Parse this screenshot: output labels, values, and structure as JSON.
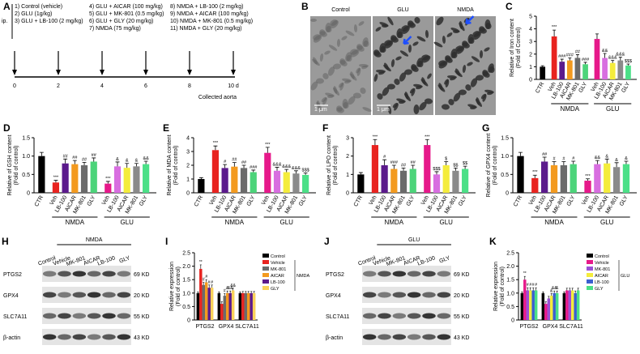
{
  "timeline": {
    "panel": "A",
    "route": "ip.",
    "treatments": [
      "1) Control (vehicle)",
      "2) GLU (1g/kg)",
      "3) GLU + LB-100 (2 mg/kg)",
      "4) GLU + AICAR (100 mg/kg)",
      "5) GLU + MK-801 (0.5 mg/kg)",
      "6) GLU + GLY (20 mg/kg)",
      "7) NMDA (75 mg/kg)",
      "8) NMDA + LB-100 (2 mg/kg)",
      "9) NMDA + AICAR (100 mg/kg)",
      "10) NMDA + MK-801 (0.5 mg/kg)",
      "11) NMDA + GLY (20 mg/kg)"
    ],
    "days": [
      "0",
      "2",
      "4",
      "6",
      "8",
      "10 d"
    ],
    "end_label": "Collected aorta"
  },
  "micrographs": {
    "panel": "B",
    "labels": [
      "Control",
      "GLU",
      "NMDA"
    ],
    "scale_label": "1 μm"
  },
  "blots": [
    {
      "panel": "H",
      "group": "NMDA",
      "lanes": [
        "Control",
        "Vehicle",
        "MK-801",
        "AICAR",
        "LB-100",
        "GLY"
      ],
      "rows": [
        {
          "protein": "PTGS2",
          "size": "69 KD"
        },
        {
          "protein": "GPX4",
          "size": "20 KD"
        },
        {
          "protein": "SLC7A11",
          "size": "55 KD"
        },
        {
          "protein": "β-actin",
          "size": "43 KD"
        }
      ]
    },
    {
      "panel": "J",
      "group": "GLU",
      "lanes": [
        "Control",
        "Vehicle",
        "MK-801",
        "AICAR",
        "LB-100",
        "GLY"
      ],
      "rows": [
        {
          "protein": "PTGS2",
          "size": "69 KD"
        },
        {
          "protein": "GPX4",
          "size": "20 KD"
        },
        {
          "protein": "SLC7A11",
          "size": "55 KD"
        },
        {
          "protein": "β-actin",
          "size": "43 KD"
        }
      ]
    }
  ],
  "chart_data": [
    {
      "type": "bar",
      "panel": "C",
      "ylabel": [
        "Relative of Iron content",
        "(Fold of Control)"
      ],
      "categories": [
        "CTR",
        "Veh",
        "LB-100",
        "AICAR",
        "MK-801",
        "GLY",
        "Veh",
        "LB-100",
        "AICAR",
        "MK-801",
        "GLY"
      ],
      "group_labels": [
        "NMDA",
        "GLU"
      ],
      "values": [
        1.0,
        3.4,
        1.4,
        1.5,
        1.7,
        1.2,
        3.2,
        1.7,
        1.3,
        1.5,
        1.1
      ],
      "errors": [
        0.08,
        0.5,
        0.2,
        0.2,
        0.25,
        0.15,
        0.4,
        0.35,
        0.2,
        0.25,
        0.12
      ],
      "annotations": [
        null,
        "***",
        "###",
        "###",
        "##",
        "###",
        null,
        "&&",
        "&&&",
        "&&&",
        "$$$"
      ],
      "colors": [
        "#000000",
        "#e8231f",
        "#5b1a8c",
        "#f39a1f",
        "#6b6b6b",
        "#4cd47a",
        "#e6198a",
        "#d86ee0",
        "#f4ec3c",
        "#8a8a8a",
        "#4be087"
      ],
      "ylim": [
        0,
        5
      ],
      "yticks": [
        0,
        1,
        2,
        3,
        4,
        5
      ]
    },
    {
      "type": "bar",
      "panel": "D",
      "ylabel": [
        "Relative of GSH content",
        "(Fold of control)"
      ],
      "categories": [
        "CTR",
        "Veh",
        "LB-100",
        "AICAR",
        "MK-801",
        "GLY",
        "Veh",
        "LB-100",
        "AICAR",
        "MK-801",
        "GLY"
      ],
      "group_labels": [
        "NMDA",
        "GLU"
      ],
      "values": [
        1.0,
        0.28,
        0.8,
        0.78,
        0.75,
        0.85,
        0.25,
        0.72,
        0.68,
        0.72,
        0.78
      ],
      "errors": [
        0.1,
        0.06,
        0.12,
        0.1,
        0.08,
        0.1,
        0.06,
        0.12,
        0.12,
        0.08,
        0.08
      ],
      "annotations": [
        null,
        "***",
        "##",
        "##",
        "##",
        "##",
        "***",
        "&",
        "&",
        "&",
        "&&"
      ],
      "colors": [
        "#000000",
        "#e8231f",
        "#5b1a8c",
        "#f39a1f",
        "#6b6b6b",
        "#4cd47a",
        "#e6198a",
        "#d86ee0",
        "#f4ec3c",
        "#8a8a8a",
        "#4be087"
      ],
      "ylim": [
        0,
        1.5
      ],
      "yticks": [
        0,
        0.5,
        {
          "value": 1,
          "label": "1.0"
        },
        1.5
      ]
    },
    {
      "type": "bar",
      "panel": "E",
      "ylabel": [
        "Relative of MDA content",
        "(Fold of control)"
      ],
      "categories": [
        "CTR",
        "Veh",
        "LB-100",
        "AICAR",
        "MK-801",
        "GLY",
        "Veh",
        "LB-100",
        "AICAR",
        "MK-801",
        "GLY"
      ],
      "group_labels": [
        "NMDA",
        "GLU"
      ],
      "values": [
        1.0,
        3.1,
        1.8,
        1.9,
        1.8,
        1.5,
        2.9,
        1.6,
        1.5,
        1.4,
        1.3
      ],
      "errors": [
        0.1,
        0.3,
        0.25,
        0.3,
        0.2,
        0.15,
        0.4,
        0.25,
        0.2,
        0.2,
        0.15
      ],
      "annotations": [
        null,
        "***",
        "#",
        "##",
        "##",
        "###",
        "***",
        "&&&",
        "&&&",
        "&&&",
        "$$$"
      ],
      "colors": [
        "#000000",
        "#e8231f",
        "#5b1a8c",
        "#f39a1f",
        "#6b6b6b",
        "#4cd47a",
        "#e6198a",
        "#d86ee0",
        "#f4ec3c",
        "#8a8a8a",
        "#4be087"
      ],
      "ylim": [
        0,
        4
      ],
      "yticks": [
        0,
        1,
        2,
        3,
        4
      ]
    },
    {
      "type": "bar",
      "panel": "F",
      "ylabel": [
        "Relative of LPO content",
        "(Fold of control)"
      ],
      "categories": [
        "CTR",
        "Veh",
        "LB-100",
        "AICAR",
        "MK-801",
        "GLY",
        "Veh",
        "LB-100",
        "AICAR",
        "MK-801",
        "GLY"
      ],
      "group_labels": [
        "NMDA",
        "GLU"
      ],
      "values": [
        1.0,
        2.6,
        1.5,
        1.3,
        1.2,
        1.3,
        2.6,
        1.0,
        1.5,
        1.2,
        1.3
      ],
      "errors": [
        0.1,
        0.3,
        0.3,
        0.2,
        0.15,
        0.2,
        0.3,
        0.15,
        0.2,
        0.15,
        0.15
      ],
      "annotations": [
        null,
        "***",
        "#",
        "###",
        "##",
        "##",
        "***",
        "$$$",
        "$",
        "$$",
        "$$"
      ],
      "colors": [
        "#000000",
        "#e8231f",
        "#5b1a8c",
        "#f39a1f",
        "#6b6b6b",
        "#4cd47a",
        "#e6198a",
        "#d86ee0",
        "#f4ec3c",
        "#8a8a8a",
        "#4be087"
      ],
      "ylim": [
        0,
        3
      ],
      "yticks": [
        0,
        1,
        2,
        3
      ]
    },
    {
      "type": "bar",
      "panel": "G",
      "ylabel": [
        "Relative of GPX4 content",
        "(Fold of control)"
      ],
      "categories": [
        "CTR",
        "Veh",
        "LB-100",
        "AICAR",
        "MK-801",
        "GLY",
        "Veh",
        "LB-100",
        "AICAR",
        "MK-801",
        "GLY"
      ],
      "group_labels": [
        "NMDA",
        "GLU"
      ],
      "values": [
        1.0,
        0.4,
        0.85,
        0.75,
        0.75,
        0.78,
        0.33,
        0.78,
        0.8,
        0.7,
        0.78
      ],
      "errors": [
        0.1,
        0.08,
        0.12,
        0.1,
        0.1,
        0.08,
        0.05,
        0.1,
        0.12,
        0.12,
        0.08
      ],
      "annotations": [
        null,
        "***",
        "##",
        "#",
        "#",
        "#",
        "***",
        "&&",
        "&",
        "&",
        "&"
      ],
      "colors": [
        "#000000",
        "#e8231f",
        "#5b1a8c",
        "#f39a1f",
        "#6b6b6b",
        "#4cd47a",
        "#e6198a",
        "#d86ee0",
        "#f4ec3c",
        "#8a8a8a",
        "#4be087"
      ],
      "ylim": [
        0,
        1.5
      ],
      "yticks": [
        0,
        0.5,
        {
          "value": 1,
          "label": "1.0"
        },
        1.5
      ]
    },
    {
      "type": "grouped_bar",
      "panel": "I",
      "ylabel": [
        "Relative expression",
        "(Fold of control)"
      ],
      "legend_group": "NMDA",
      "categories": [
        "PTGS2",
        "GPX4",
        "SLC7A11"
      ],
      "ylim": [
        0,
        2.5
      ],
      "yticks": [
        0,
        0.5,
        {
          "value": 1,
          "label": "1.0"
        },
        1.5,
        {
          "value": 2,
          "label": "2.0"
        },
        2.5
      ],
      "series": [
        {
          "name": "Control",
          "color": "#000000",
          "values": [
            1.0,
            1.0,
            1.0
          ],
          "errors": [
            0.05,
            0.05,
            0.05
          ],
          "annotations": [
            null,
            null,
            null
          ]
        },
        {
          "name": "Vehicle",
          "color": "#e8231f",
          "values": [
            1.9,
            0.6,
            1.0
          ],
          "errors": [
            0.15,
            0.08,
            0.06
          ],
          "annotations": [
            "**",
            null,
            null
          ]
        },
        {
          "name": "MK-801",
          "color": "#6b6b6b",
          "values": [
            1.3,
            0.9,
            1.0
          ],
          "errors": [
            0.1,
            0.08,
            0.06
          ],
          "annotations": [
            "#",
            "#",
            null
          ]
        },
        {
          "name": "AICAR",
          "color": "#f39a1f",
          "values": [
            1.4,
            1.0,
            1.0
          ],
          "errors": [
            0.1,
            0.08,
            0.06
          ],
          "annotations": [
            "#",
            "&",
            null
          ]
        },
        {
          "name": "LB-100",
          "color": "#5b1a8c",
          "values": [
            1.2,
            1.0,
            1.0
          ],
          "errors": [
            0.1,
            0.08,
            0.06
          ],
          "annotations": [
            "#",
            "&&",
            null
          ]
        },
        {
          "name": "GLY",
          "color": "#f9d25a",
          "values": [
            1.2,
            1.1,
            1.0
          ],
          "errors": [
            0.1,
            0.08,
            0.06
          ],
          "annotations": [
            "#",
            "&&",
            null
          ]
        }
      ]
    },
    {
      "type": "grouped_bar",
      "panel": "K",
      "ylabel": [
        "Relative expression",
        "(Fold of control)"
      ],
      "legend_group": "GLU",
      "categories": [
        "PTGS2",
        "GPX4",
        "SLC7A11"
      ],
      "ylim": [
        0,
        2.5
      ],
      "yticks": [
        0,
        0.5,
        {
          "value": 1,
          "label": "1.0"
        },
        1.5,
        {
          "value": 2,
          "label": "2.0"
        },
        2.5
      ],
      "series": [
        {
          "name": "Control",
          "color": "#000000",
          "values": [
            1.0,
            1.0,
            1.0
          ],
          "errors": [
            0.05,
            0.05,
            0.05
          ],
          "annotations": [
            null,
            null,
            null
          ]
        },
        {
          "name": "Vehicle",
          "color": "#e6198a",
          "values": [
            1.5,
            0.6,
            1.1
          ],
          "errors": [
            0.12,
            0.08,
            0.08
          ],
          "annotations": [
            "**",
            null,
            null
          ]
        },
        {
          "name": "MK-801",
          "color": "#9b4fd6",
          "values": [
            1.1,
            0.8,
            1.1
          ],
          "errors": [
            0.1,
            0.08,
            0.08
          ],
          "annotations": [
            "#",
            null,
            null
          ]
        },
        {
          "name": "AICAR",
          "color": "#f4ec3c",
          "values": [
            1.1,
            0.9,
            1.1
          ],
          "errors": [
            0.1,
            0.08,
            0.08
          ],
          "annotations": [
            "#",
            "&",
            null
          ]
        },
        {
          "name": "LB-100",
          "color": "#3a5fd0",
          "values": [
            1.1,
            1.0,
            1.0
          ],
          "errors": [
            0.1,
            0.08,
            0.08
          ],
          "annotations": [
            "#",
            "&&",
            null
          ]
        },
        {
          "name": "GLY",
          "color": "#4be087",
          "values": [
            1.1,
            1.0,
            1.1
          ],
          "errors": [
            0.1,
            0.08,
            0.08
          ],
          "annotations": [
            "#",
            "&",
            null
          ]
        }
      ]
    }
  ]
}
